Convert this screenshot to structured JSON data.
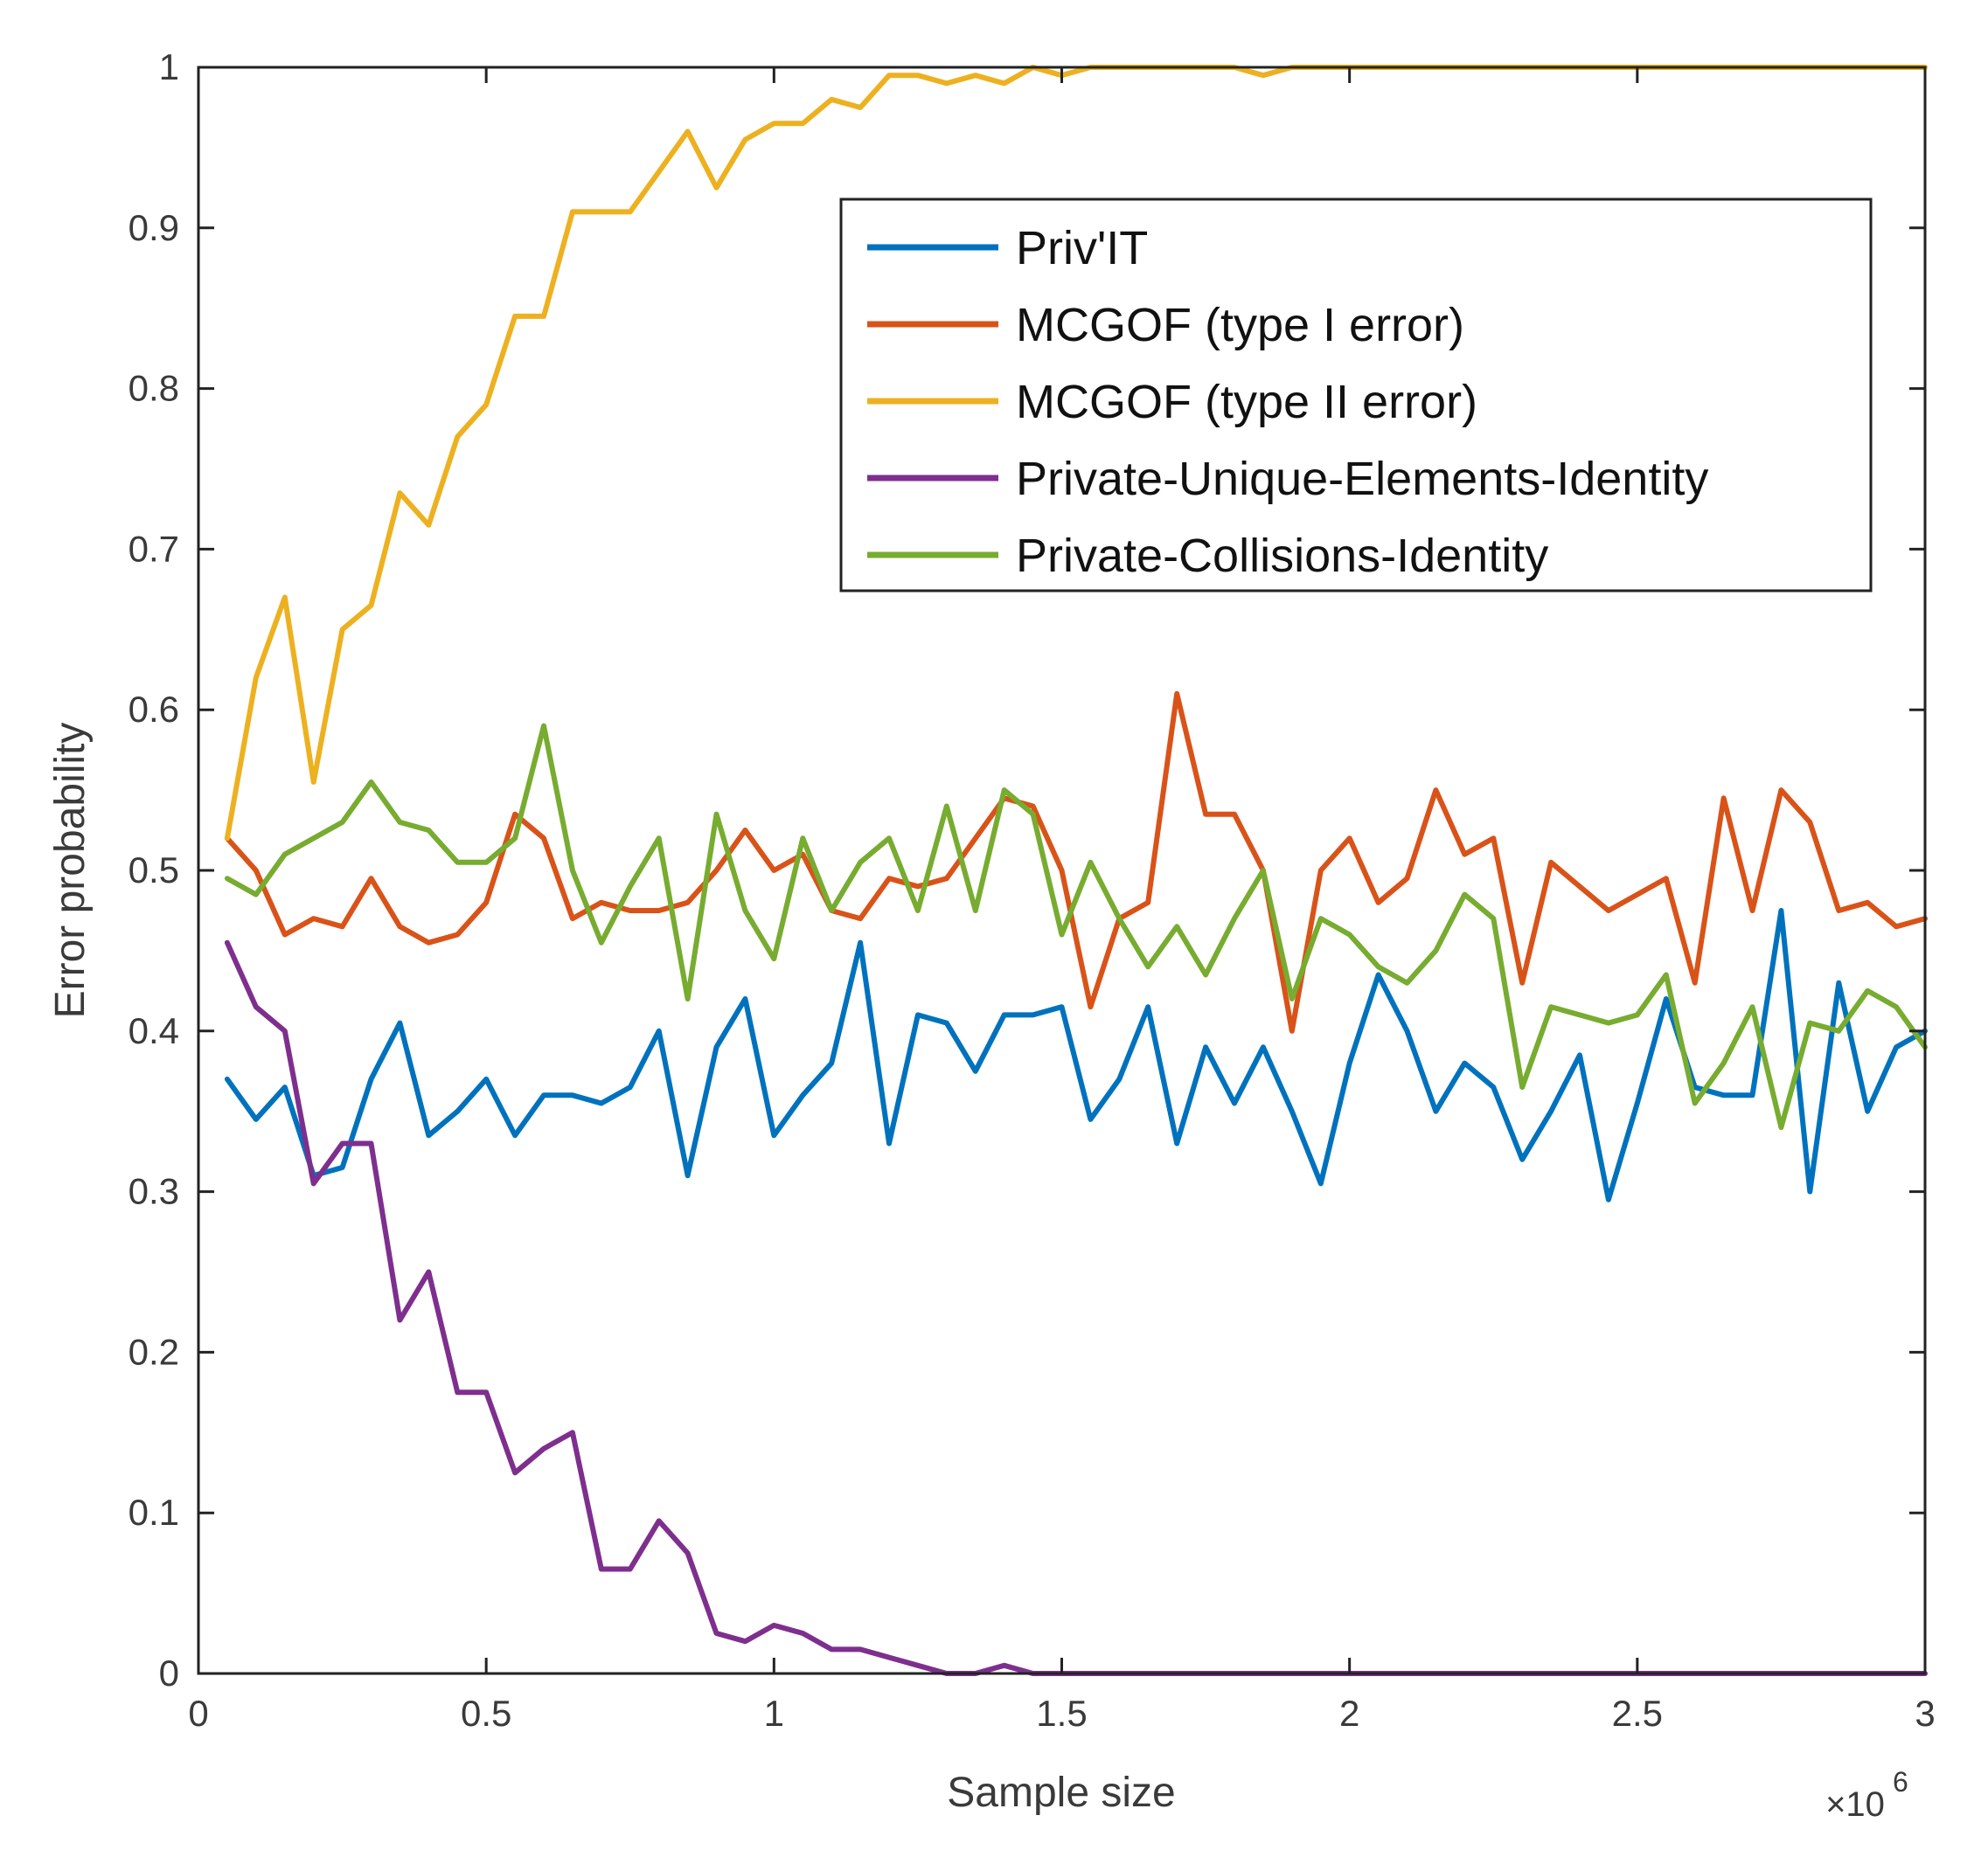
{
  "chart_data": {
    "type": "line",
    "title": "",
    "xlabel": "Sample size",
    "ylabel": "Error probability",
    "x_multiplier_label": "×10",
    "x_multiplier_exp": "6",
    "xlim": [
      0,
      3
    ],
    "ylim": [
      0,
      1
    ],
    "x_ticks": [
      0,
      0.5,
      1,
      1.5,
      2,
      2.5,
      3
    ],
    "x_tick_labels": [
      "0",
      "0.5",
      "1",
      "1.5",
      "2",
      "2.5",
      "3"
    ],
    "y_ticks": [
      0,
      0.1,
      0.2,
      0.3,
      0.4,
      0.5,
      0.6,
      0.7,
      0.8,
      0.9,
      1
    ],
    "y_tick_labels": [
      "0",
      "0.1",
      "0.2",
      "0.3",
      "0.4",
      "0.5",
      "0.6",
      "0.7",
      "0.8",
      "0.9",
      "1"
    ],
    "grid": false,
    "legend_position": "top-right",
    "x": [
      0.05,
      0.1,
      0.15,
      0.2,
      0.25,
      0.3,
      0.35,
      0.4,
      0.45,
      0.5,
      0.55,
      0.6,
      0.65,
      0.7,
      0.75,
      0.8,
      0.85,
      0.9,
      0.95,
      1.0,
      1.05,
      1.1,
      1.15,
      1.2,
      1.25,
      1.3,
      1.35,
      1.4,
      1.45,
      1.5,
      1.55,
      1.6,
      1.65,
      1.7,
      1.75,
      1.8,
      1.85,
      1.9,
      1.95,
      2.0,
      2.05,
      2.1,
      2.15,
      2.2,
      2.25,
      2.3,
      2.35,
      2.4,
      2.45,
      2.5,
      2.55,
      2.6,
      2.65,
      2.7,
      2.75,
      2.8,
      2.85,
      2.9,
      2.95,
      3.0
    ],
    "series": [
      {
        "name": "Priv'IT",
        "color": "#0072BD",
        "values": [
          0.37,
          0.345,
          0.365,
          0.31,
          0.315,
          0.37,
          0.405,
          0.335,
          0.35,
          0.37,
          0.335,
          0.36,
          0.36,
          0.355,
          0.365,
          0.4,
          0.31,
          0.39,
          0.42,
          0.335,
          0.36,
          0.38,
          0.455,
          0.33,
          0.41,
          0.405,
          0.375,
          0.41,
          0.41,
          0.415,
          0.345,
          0.37,
          0.415,
          0.33,
          0.39,
          0.355,
          0.39,
          0.35,
          0.305,
          0.38,
          0.435,
          0.4,
          0.35,
          0.38,
          0.365,
          0.32,
          0.35,
          0.385,
          0.295,
          0.355,
          0.42,
          0.365,
          0.36,
          0.36,
          0.475,
          0.3,
          0.43,
          0.35,
          0.39,
          0.4
        ]
      },
      {
        "name": "MCGOF (type I error)",
        "color": "#D95319",
        "values": [
          0.52,
          0.5,
          0.46,
          0.47,
          0.465,
          0.495,
          0.465,
          0.455,
          0.46,
          0.48,
          0.535,
          0.52,
          0.47,
          0.48,
          0.475,
          0.475,
          0.48,
          0.5,
          0.525,
          0.5,
          0.51,
          0.475,
          0.47,
          0.495,
          0.49,
          0.495,
          0.52,
          0.545,
          0.54,
          0.5,
          0.415,
          0.47,
          0.48,
          0.61,
          0.535,
          0.535,
          0.5,
          0.4,
          0.5,
          0.52,
          0.48,
          0.495,
          0.55,
          0.51,
          0.52,
          0.43,
          0.505,
          0.49,
          0.475,
          0.485,
          0.495,
          0.43,
          0.545,
          0.475,
          0.55,
          0.53,
          0.475,
          0.48,
          0.465,
          0.47
        ]
      },
      {
        "name": "MCGOF (type II error)",
        "color": "#EDB120",
        "values": [
          0.52,
          0.62,
          0.67,
          0.555,
          0.65,
          0.665,
          0.735,
          0.715,
          0.77,
          0.79,
          0.845,
          0.845,
          0.91,
          0.91,
          0.91,
          0.935,
          0.96,
          0.925,
          0.955,
          0.965,
          0.965,
          0.98,
          0.975,
          0.995,
          0.995,
          0.99,
          0.995,
          0.99,
          1.0,
          0.995,
          1.0,
          1.0,
          1.0,
          1.0,
          1.0,
          1.0,
          0.995,
          1.0,
          1.0,
          1.0,
          1.0,
          1.0,
          1.0,
          1.0,
          1.0,
          1.0,
          1.0,
          1.0,
          1.0,
          1.0,
          1.0,
          1.0,
          1.0,
          1.0,
          1.0,
          1.0,
          1.0,
          1.0,
          1.0,
          1.0
        ]
      },
      {
        "name": "Private-Unique-Elements-Identity",
        "color": "#7E2F8E",
        "values": [
          0.455,
          0.415,
          0.4,
          0.305,
          0.33,
          0.33,
          0.22,
          0.25,
          0.175,
          0.175,
          0.125,
          0.14,
          0.15,
          0.065,
          0.065,
          0.095,
          0.075,
          0.025,
          0.02,
          0.03,
          0.025,
          0.015,
          0.015,
          0.01,
          0.005,
          0.0,
          0.0,
          0.005,
          0.0,
          0.0,
          0.0,
          0.0,
          0.0,
          0.0,
          0.0,
          0.0,
          0.0,
          0.0,
          0.0,
          0.0,
          0.0,
          0.0,
          0.0,
          0.0,
          0.0,
          0.0,
          0.0,
          0.0,
          0.0,
          0.0,
          0.0,
          0.0,
          0.0,
          0.0,
          0.0,
          0.0,
          0.0,
          0.0,
          0.0,
          0.0
        ]
      },
      {
        "name": "Private-Collisions-Identity",
        "color": "#77AC30",
        "values": [
          0.495,
          0.485,
          0.51,
          0.52,
          0.53,
          0.555,
          0.53,
          0.525,
          0.505,
          0.505,
          0.52,
          0.59,
          0.5,
          0.455,
          0.49,
          0.52,
          0.42,
          0.535,
          0.475,
          0.445,
          0.52,
          0.475,
          0.505,
          0.52,
          0.475,
          0.54,
          0.475,
          0.55,
          0.535,
          0.46,
          0.505,
          0.47,
          0.44,
          0.465,
          0.435,
          0.47,
          0.5,
          0.42,
          0.47,
          0.46,
          0.44,
          0.43,
          0.45,
          0.485,
          0.47,
          0.365,
          0.415,
          0.41,
          0.405,
          0.41,
          0.435,
          0.355,
          0.38,
          0.415,
          0.34,
          0.405,
          0.4,
          0.425,
          0.415,
          0.39
        ]
      }
    ]
  }
}
